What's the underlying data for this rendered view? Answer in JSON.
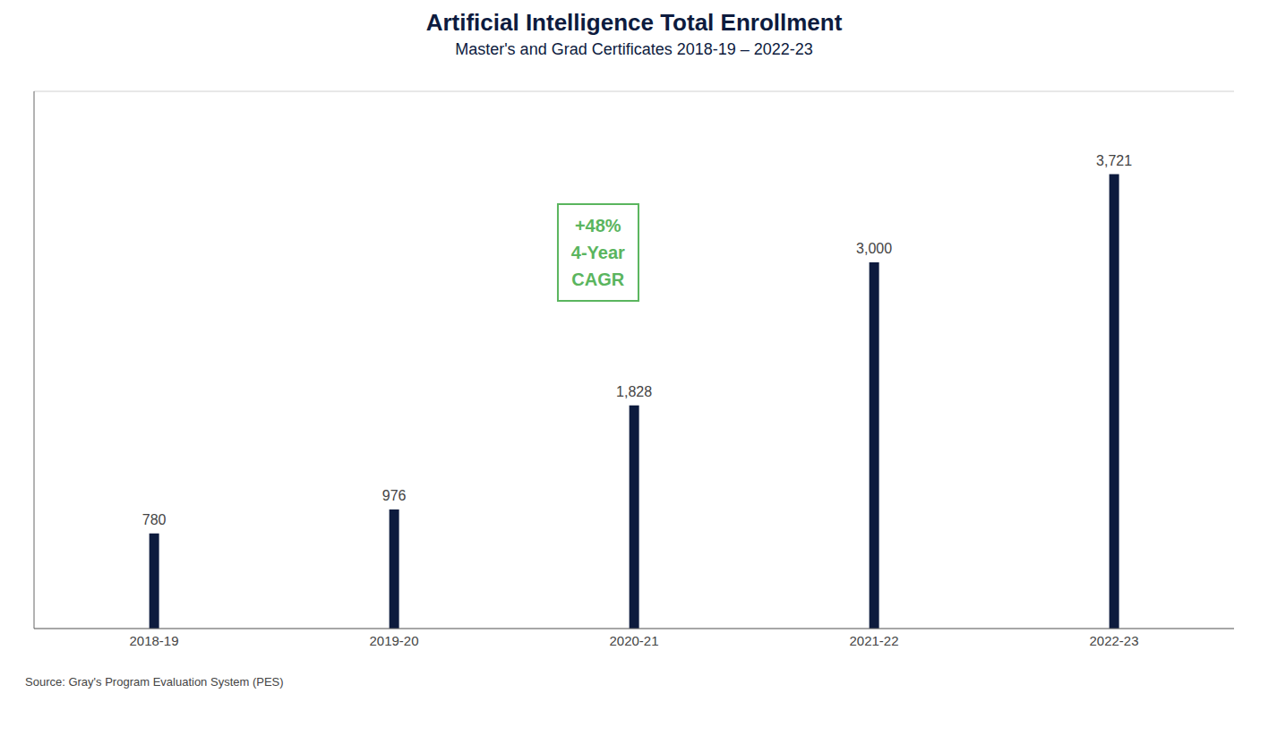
{
  "chart_data": {
    "type": "bar",
    "title": "Artificial Intelligence Total Enrollment",
    "subtitle": "Master's and Grad Certificates 2018-19 – 2022-23",
    "categories": [
      "2018-19",
      "2019-20",
      "2020-21",
      "2021-22",
      "2022-23"
    ],
    "values": [
      780,
      976,
      1828,
      3000,
      3721
    ],
    "value_labels": [
      "780",
      "976",
      "1,828",
      "3,000",
      "3,721"
    ],
    "data_labels": true,
    "color": "#0d1b3e",
    "ylim": [
      0,
      4400
    ],
    "yticks": [
      500,
      1000,
      1500,
      2000,
      2500,
      3000,
      3500,
      4000
    ],
    "grid": true,
    "tick_labels": "x",
    "annotation": {
      "text": "+48%\n4-Year\nCAGR",
      "color": "#5ab55e"
    },
    "source": "Source: Gray's Program Evaluation System (PES)"
  }
}
